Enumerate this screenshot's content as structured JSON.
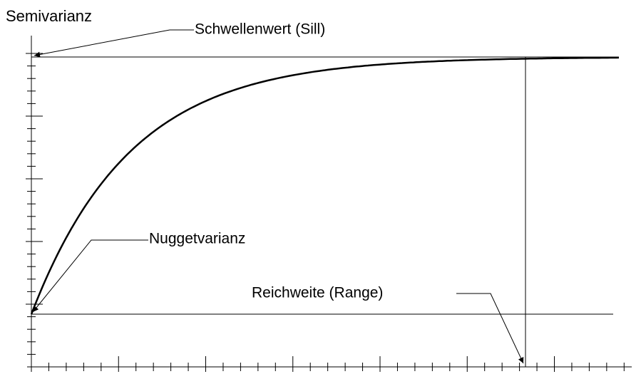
{
  "y_axis_label": "Semivarianz",
  "annotations": {
    "sill": "Schwellenwert (Sill)",
    "nugget": "Nuggetvarianz",
    "range": "Reichweite (Range)"
  }
}
